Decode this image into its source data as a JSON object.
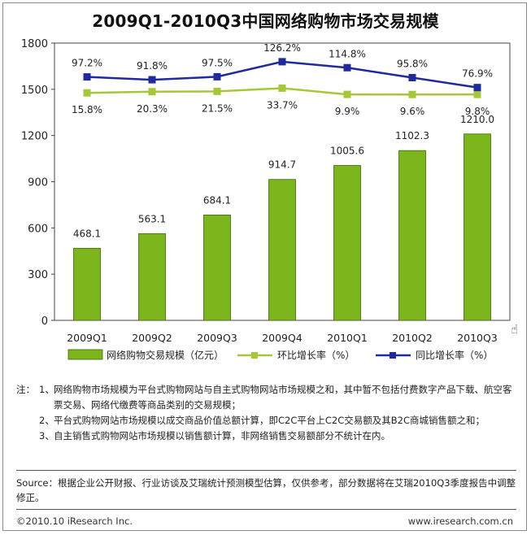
{
  "chart_data": {
    "type": "bar",
    "title": "2009Q1-2010Q3中国网络购物市场交易规模",
    "categories": [
      "2009Q1",
      "2009Q2",
      "2009Q3",
      "2009Q4",
      "2010Q1",
      "2010Q2",
      "2010Q3"
    ],
    "ylim": [
      0,
      1800
    ],
    "yticks": [
      "0",
      "300",
      "600",
      "900",
      "1200",
      "1500",
      "1800"
    ],
    "bar_series": {
      "name": "网络购物交易规模（亿元）",
      "color": "#7cb51c",
      "values": [
        468.1,
        563.1,
        684.1,
        914.7,
        1005.6,
        1102.3,
        1210.0
      ],
      "labels": [
        "468.1",
        "563.1",
        "684.1",
        "914.7",
        "1005.6",
        "1102.3",
        "1210.0"
      ]
    },
    "qoq_series": {
      "name": "环比增长率（%）",
      "color": "#a6c838",
      "values": [
        15.8,
        20.3,
        21.5,
        33.7,
        9.9,
        9.6,
        9.8
      ],
      "labels": [
        "15.8%",
        "20.3%",
        "21.5%",
        "33.7%",
        "9.9%",
        "9.6%",
        "9.8%"
      ]
    },
    "yoy_series": {
      "name": "同比增长率（%）",
      "color": "#1f2a9c",
      "values": [
        97.2,
        91.8,
        97.5,
        126.2,
        114.8,
        95.8,
        76.9
      ],
      "labels": [
        "97.2%",
        "91.8%",
        "97.5%",
        "126.2%",
        "114.8%",
        "95.8%",
        "76.9%"
      ]
    }
  },
  "notes": {
    "lead": "注：",
    "items": [
      {
        "num": "1、",
        "text": "网络购物市场规模为平台式购物网站与自主式购物网站市场规模之和，其中暂不包括付费数字产品下载、航空客票交易、网络代缴费等商品类别的交易规模；"
      },
      {
        "num": "2、",
        "text": "平台式购物网站市场规模以成交商品价值总额计算，即C2C平台上C2C交易额及其B2C商城销售额之和；"
      },
      {
        "num": "3、",
        "text": "自主销售式购物网站市场规模以销售额计算，非网络销售交易额部分不统计在内。"
      }
    ]
  },
  "source": "Source：根据企业公开财报、行业访谈及艾瑞统计预测模型估算，仅供参考，部分数据将在艾瑞2010Q3季度报告中调整修正。",
  "footer": {
    "copyright": "©2010.10 iResearch Inc.",
    "url": "www.iresearch.com.cn"
  },
  "cursor_icon": "hand-pointer-icon"
}
